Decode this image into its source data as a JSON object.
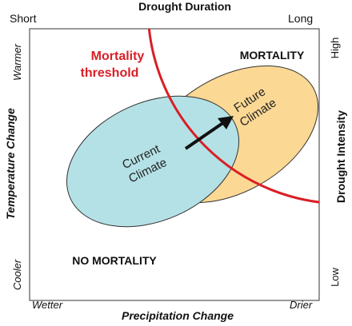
{
  "top_axis": {
    "title": "Drought Duration",
    "left_label": "Short",
    "right_label": "Long"
  },
  "bottom_axis": {
    "title": "Precipitation Change",
    "left_label": "Wetter",
    "right_label": "Drier"
  },
  "left_axis": {
    "title": "Temperature Change",
    "top_label": "Warmer",
    "bottom_label": "Cooler"
  },
  "right_axis": {
    "title": "Drought Intensity",
    "top_label": "High",
    "bottom_label": "Low"
  },
  "regions": {
    "mortality": "MORTALITY",
    "no_mortality": "NO MORTALITY"
  },
  "threshold": {
    "line1": "Mortality",
    "line2": "threshold",
    "color": "#d91f26"
  },
  "ellipses": {
    "current": {
      "line1": "Current",
      "line2": "Climate",
      "color": "#b4e1e6"
    },
    "future": {
      "line1": "Future",
      "line2": "Climate",
      "color": "#fbd894"
    }
  }
}
